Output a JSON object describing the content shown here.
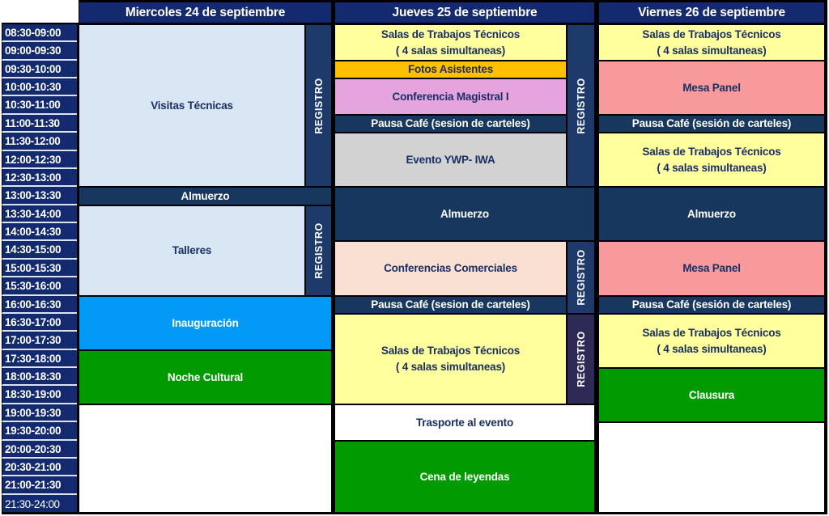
{
  "table": {
    "registro_label": "REGISTRO",
    "palette": {
      "navy_header": "#142A6E",
      "navy_bar": "#17375E",
      "navy_strip": "#1D3A6A",
      "purple_strip": "#2D2B55",
      "lightblue": "#D9E6F4",
      "yellow": "#FFFF9E",
      "orange": "#FFC000",
      "plum": "#E5A4DE",
      "gray": "#D2D2D2",
      "peach": "#F9E0D2",
      "salmon": "#F8999C",
      "brightblue": "#0399F7",
      "green": "#019A01",
      "white": "#FFFFFF",
      "text_dark": "#1A2F63",
      "text_white": "#FFFFFF"
    },
    "headers": [
      {
        "label": "Miercoles 24 de septiembre"
      },
      {
        "label": "Jueves 25 de septiembre"
      },
      {
        "label": "Viernes 26 de septiembre"
      }
    ],
    "time_slots": [
      "08:30-09:00",
      "09:00-09:30",
      "09:30-10:00",
      "10:00-10:30",
      "10:30-11:00",
      "11:00-11:30",
      "11:30-12:00",
      "12:00-12:30",
      "12:30-13:00",
      "13:00-13:30",
      "13:30-14:00",
      "14:00-14:30",
      "14:30-15:00",
      "15:00-15:30",
      "15:30-16:00",
      "16:00-16:30",
      "16:30-17:00",
      "17:00-17:30",
      "17:30-18:00",
      "18:00-18:30",
      "18:30-19:00",
      "19:00-19:30",
      "19:30-20:00",
      "20:00-20:30",
      "20:30-21:00",
      "21:00-21:30",
      "21:30-24:00"
    ],
    "events": [
      {
        "col": "mie_main",
        "start": 0,
        "end": 9,
        "color": "lightblue",
        "text": "dark",
        "label": "Visitas Técnicas"
      },
      {
        "type": "strip",
        "col": "mie_strip",
        "start": 0,
        "end": 9,
        "color": "navy_strip"
      },
      {
        "col": "mie_full",
        "start": 9,
        "end": 10,
        "color": "navy_bar",
        "text": "white",
        "label": "Almuerzo"
      },
      {
        "col": "mie_main",
        "start": 10,
        "end": 15,
        "color": "lightblue",
        "text": "dark",
        "label": "Talleres"
      },
      {
        "type": "strip",
        "col": "mie_strip",
        "start": 10,
        "end": 15,
        "color": "navy_strip"
      },
      {
        "col": "mie_full",
        "start": 15,
        "end": 18,
        "color": "brightblue",
        "text": "white",
        "label": "Inauguración"
      },
      {
        "col": "mie_full",
        "start": 18,
        "end": 21,
        "color": "green",
        "text": "white",
        "label": "Noche Cultural"
      },
      {
        "col": "mie_full",
        "start": 21,
        "end": 27,
        "color": "white",
        "text": "dark",
        "label": ""
      },
      {
        "col": "jue_main",
        "start": 0,
        "end": 2,
        "color": "yellow",
        "text": "dark",
        "label": "Salas de Trabajos Técnicos",
        "label2": "( 4 salas simultaneas)"
      },
      {
        "col": "jue_main",
        "start": 2,
        "end": 3,
        "color": "orange",
        "text": "dark",
        "label": "Fotos Asistentes"
      },
      {
        "col": "jue_main",
        "start": 3,
        "end": 5,
        "color": "plum",
        "text": "dark",
        "label": "Conferencia Magistral I"
      },
      {
        "col": "jue_main",
        "start": 5,
        "end": 6,
        "color": "navy_bar",
        "text": "white",
        "label": "Pausa Café (sesion de carteles)"
      },
      {
        "col": "jue_main",
        "start": 6,
        "end": 9,
        "color": "gray",
        "text": "dark",
        "label": "Evento YWP- IWA"
      },
      {
        "type": "strip",
        "col": "jue_strip",
        "start": 0,
        "end": 9,
        "color": "navy_strip"
      },
      {
        "col": "jue_full",
        "start": 9,
        "end": 12,
        "color": "navy_bar",
        "text": "white",
        "label": "Almuerzo"
      },
      {
        "col": "jue_main",
        "start": 12,
        "end": 15,
        "color": "peach",
        "text": "dark",
        "label": "Conferencias Comerciales"
      },
      {
        "type": "strip",
        "col": "jue_strip",
        "start": 12,
        "end": 16,
        "color": "navy_strip"
      },
      {
        "col": "jue_main",
        "start": 15,
        "end": 16,
        "color": "navy_bar",
        "text": "white",
        "label": "Pausa Café (sesion de carteles)"
      },
      {
        "col": "jue_main",
        "start": 16,
        "end": 21,
        "color": "yellow",
        "text": "dark",
        "label": "Salas de Trabajos Técnicos",
        "label2": "( 4 salas simultaneas)"
      },
      {
        "type": "strip",
        "col": "jue_strip",
        "start": 16,
        "end": 21,
        "color": "purple_strip"
      },
      {
        "col": "jue_full",
        "start": 21,
        "end": 23,
        "color": "white",
        "text": "dark",
        "label": "Trasporte al evento"
      },
      {
        "col": "jue_full",
        "start": 23,
        "end": 27,
        "color": "green",
        "text": "white",
        "label": "Cena de leyendas"
      },
      {
        "col": "vie",
        "start": 0,
        "end": 2,
        "color": "yellow",
        "text": "dark",
        "label": "Salas de Trabajos Técnicos",
        "label2": "( 4 salas simultaneas)"
      },
      {
        "col": "vie",
        "start": 2,
        "end": 5,
        "color": "salmon",
        "text": "dark",
        "label": "Mesa Panel"
      },
      {
        "col": "vie",
        "start": 5,
        "end": 6,
        "color": "navy_bar",
        "text": "white",
        "label": "Pausa Café (sesión de carteles)"
      },
      {
        "col": "vie",
        "start": 6,
        "end": 9,
        "color": "yellow",
        "text": "dark",
        "label": "Salas de Trabajos Técnicos",
        "label2": "( 4 salas simultaneas)"
      },
      {
        "col": "vie",
        "start": 9,
        "end": 12,
        "color": "navy_bar",
        "text": "white",
        "label": "Almuerzo"
      },
      {
        "col": "vie",
        "start": 12,
        "end": 15,
        "color": "salmon",
        "text": "dark",
        "label": "Mesa Panel"
      },
      {
        "col": "vie",
        "start": 15,
        "end": 16,
        "color": "navy_bar",
        "text": "white",
        "label": "Pausa Café (sesión de carteles)"
      },
      {
        "col": "vie",
        "start": 16,
        "end": 19,
        "color": "yellow",
        "text": "dark",
        "label": "Salas de Trabajos Técnicos",
        "label2": "( 4 salas simultaneas)"
      },
      {
        "col": "vie",
        "start": 19,
        "end": 22,
        "color": "green",
        "text": "white",
        "label": "Clausura"
      },
      {
        "col": "vie",
        "start": 22,
        "end": 27,
        "color": "white",
        "text": "dark",
        "label": ""
      }
    ]
  }
}
